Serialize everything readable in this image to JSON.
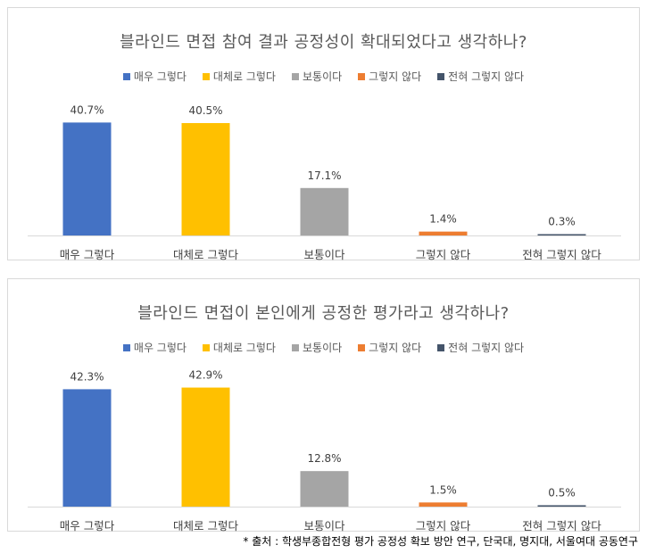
{
  "chart_data": [
    {
      "type": "bar",
      "title": "블라인드 면접 참여 결과 공정성이 확대되었다고 생각하나?",
      "categories": [
        "매우 그렇다",
        "대체로 그렇다",
        "보통이다",
        "그렇지 않다",
        "전혀 그렇지 않다"
      ],
      "values": [
        40.7,
        40.5,
        17.1,
        1.4,
        0.3
      ],
      "value_labels": [
        "40.7%",
        "40.5%",
        "17.1%",
        "1.4%",
        "0.3%"
      ],
      "colors": [
        "#4472c4",
        "#ffc000",
        "#a5a5a5",
        "#ed7d31",
        "#44546a"
      ],
      "legend_position": "top",
      "ylim": [
        0,
        45
      ],
      "grid": false
    },
    {
      "type": "bar",
      "title": "블라인드 면접이 본인에게 공정한 평가라고 생각하나?",
      "categories": [
        "매우 그렇다",
        "대체로 그렇다",
        "보통이다",
        "그렇지 않다",
        "전혀 그렇지 않다"
      ],
      "values": [
        42.3,
        42.9,
        12.8,
        1.5,
        0.5
      ],
      "value_labels": [
        "42.3%",
        "42.9%",
        "12.8%",
        "1.5%",
        "0.5%"
      ],
      "colors": [
        "#4472c4",
        "#ffc000",
        "#a5a5a5",
        "#ed7d31",
        "#44546a"
      ],
      "legend_position": "top",
      "ylim": [
        0,
        45
      ],
      "grid": false
    }
  ],
  "source": "* 출처 : 학생부종합전형 평가 공정성 확보 방안 연구, 단국대, 명지대, 서울여대 공동연구"
}
